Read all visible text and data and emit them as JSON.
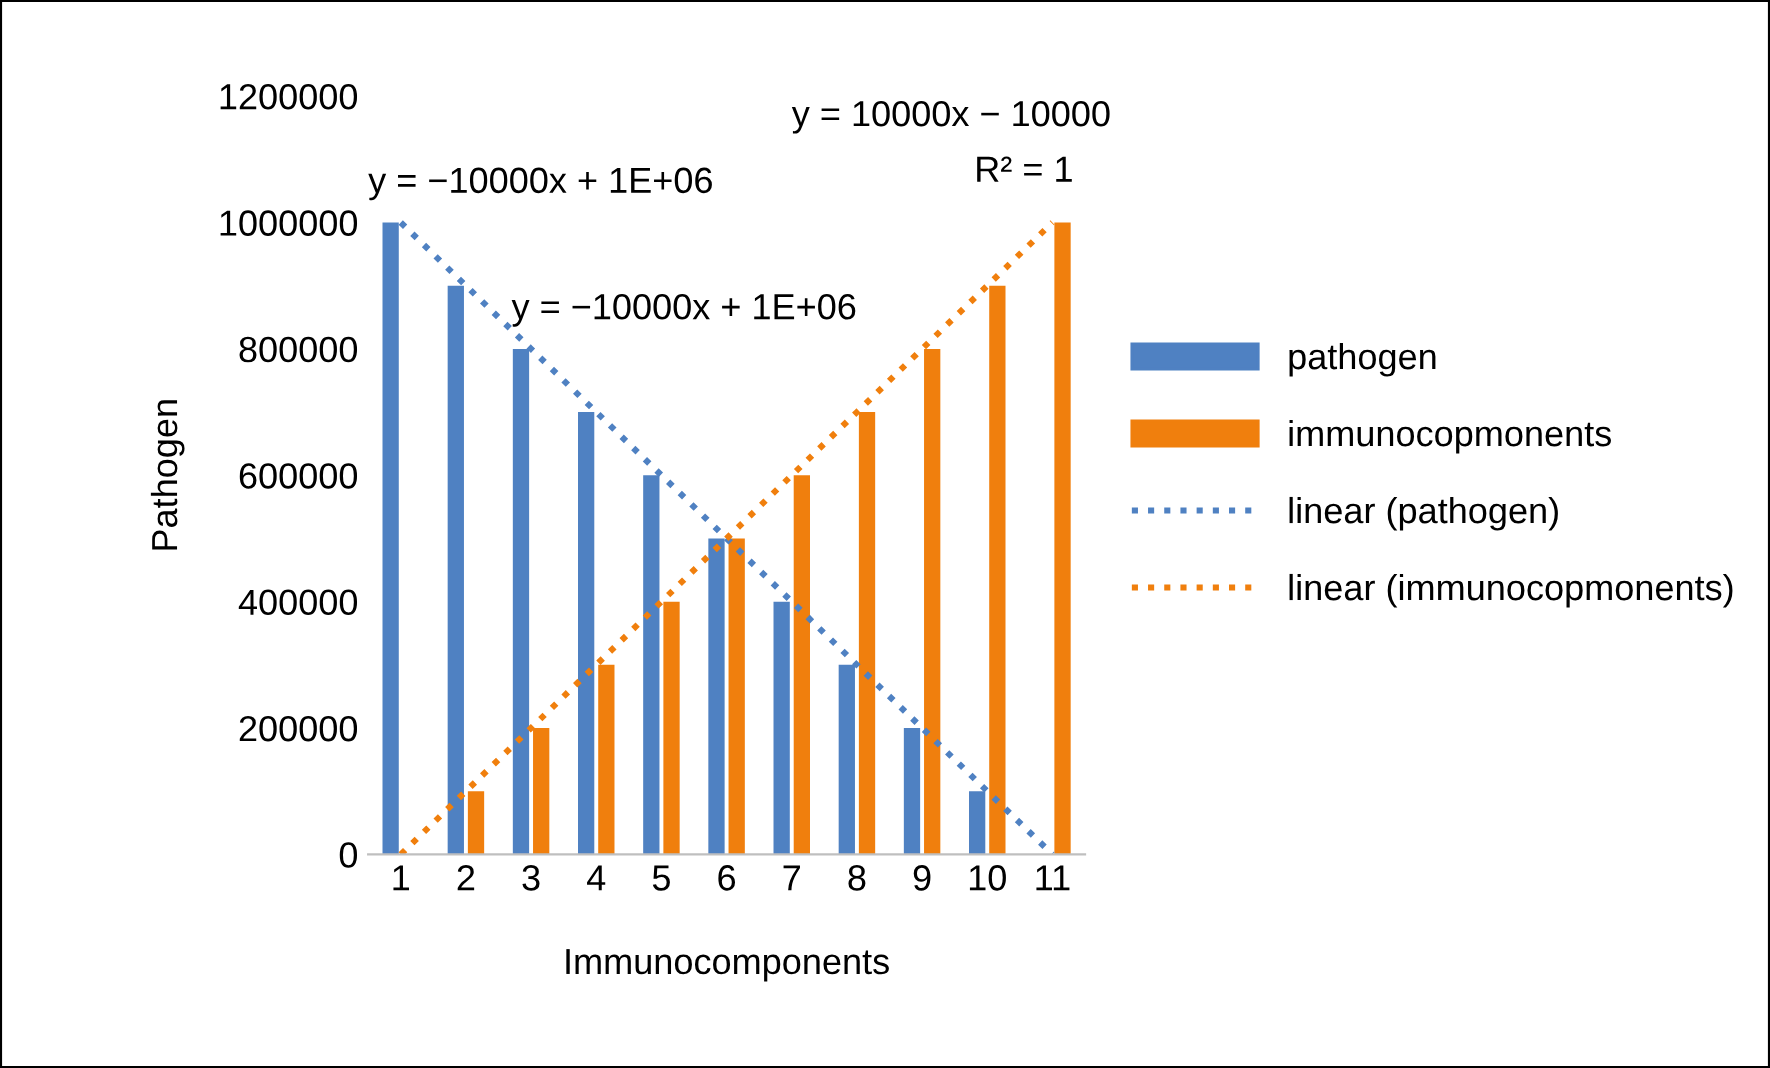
{
  "chart_data": {
    "type": "bar",
    "xlabel": "Immunocomponents",
    "ylabel": "Pathogen",
    "categories": [
      "1",
      "2",
      "3",
      "4",
      "5",
      "6",
      "7",
      "8",
      "9",
      "10",
      "11"
    ],
    "series": [
      {
        "name": "pathogen",
        "color": "#4f81c2",
        "values": [
          1000000,
          900000,
          800000,
          700000,
          600000,
          500000,
          400000,
          300000,
          200000,
          100000,
          0
        ]
      },
      {
        "name": "immunocopmonents",
        "color": "#f07f0d",
        "values": [
          0,
          100000,
          200000,
          300000,
          400000,
          500000,
          600000,
          700000,
          800000,
          900000,
          1000000
        ]
      },
      {
        "name": "linear (pathogen)",
        "type": "line",
        "line_style": "dotted",
        "color": "#4f81c2",
        "values": [
          1000000,
          900000,
          800000,
          700000,
          600000,
          500000,
          400000,
          300000,
          200000,
          100000,
          0
        ]
      },
      {
        "name": "linear (immunocopmonents)",
        "type": "line",
        "line_style": "dotted",
        "color": "#f07f0d",
        "values": [
          0,
          100000,
          200000,
          300000,
          400000,
          500000,
          600000,
          700000,
          800000,
          900000,
          1000000
        ]
      }
    ],
    "ylim": [
      0,
      1200000
    ],
    "yticks": [
      0,
      200000,
      400000,
      600000,
      800000,
      1000000,
      1200000
    ],
    "grid": false,
    "legend": "right",
    "annotations": [
      {
        "text": "y = −10000x + 1E+06",
        "x": "1",
        "y": 1000000
      },
      {
        "text": "y = −10000x + 1E+06",
        "x": "3",
        "y": 800000
      },
      {
        "text": "y = 10000x − 10000",
        "x": "11",
        "y": 1000000
      },
      {
        "text": "R² = 1",
        "x": "11",
        "y": 1000000
      }
    ]
  }
}
